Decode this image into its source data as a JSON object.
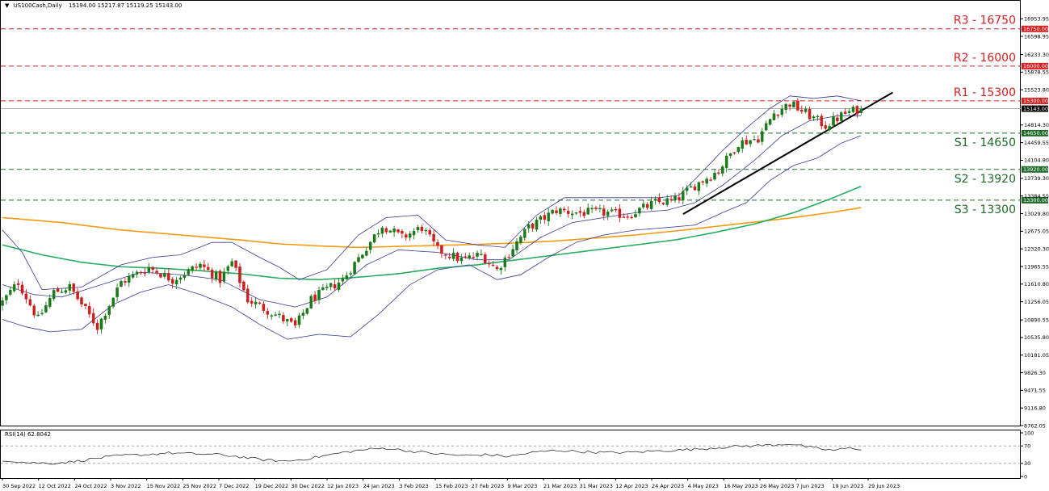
{
  "header": {
    "symbol": "US100Cash,Daily",
    "ohlc": "15194.00 15217.87 15119.25 15143.00"
  },
  "rsi_header": "RSI(14) 62.8042",
  "colors": {
    "up": "#1a7a1a",
    "down": "#cc1f1f",
    "resistance": "#d42020",
    "support": "#1f6b2a",
    "bollinger": "#3b3b9c",
    "ma_green": "#27ae60",
    "ma_orange": "#f39c12",
    "trendline": "#000000",
    "rsi": "#333333"
  },
  "chart_data": {
    "type": "candlestick",
    "ylim": [
      8762.05,
      17250
    ],
    "y_ticks": [
      "16953.95",
      "16598.95",
      "16233.30",
      "15878.55",
      "15523.80",
      "14814.30",
      "14459.55",
      "14104.80",
      "13739.30",
      "13384.55",
      "13029.80",
      "12675.05",
      "12320.30",
      "11965.55",
      "11610.80",
      "11256.05",
      "10890.55",
      "10535.80",
      "10181.05",
      "9826.30",
      "9471.55",
      "9116.80",
      "8762.05"
    ],
    "x_ticks": [
      "30 Sep 2022",
      "12 Oct 2022",
      "24 Oct 2022",
      "3 Nov 2022",
      "15 Nov 2022",
      "25 Nov 2022",
      "7 Dec 2022",
      "19 Dec 2022",
      "30 Dec 2022",
      "12 Jan 2023",
      "24 Jan 2023",
      "3 Feb 2023",
      "15 Feb 2023",
      "27 Feb 2023",
      "9 Mar 2023",
      "21 Mar 2023",
      "31 Mar 2023",
      "12 Apr 2023",
      "24 Apr 2023",
      "4 May 2023",
      "16 May 2023",
      "26 May 2023",
      "7 Jun 2023",
      "19 Jun 2023",
      "29 Jun 2023"
    ],
    "levels": [
      {
        "name": "R3 - 16750",
        "tag": "16750.00",
        "value": 16750,
        "kind": "resistance"
      },
      {
        "name": "R2 - 16000",
        "tag": "16000.00",
        "value": 16000,
        "kind": "resistance"
      },
      {
        "name": "R1 - 15300",
        "tag": "15300.00",
        "value": 15300,
        "kind": "resistance"
      },
      {
        "name": "S1 - 14650",
        "tag": "14650.00",
        "value": 14650,
        "kind": "support"
      },
      {
        "name": "S2 - 13920",
        "tag": "13920.00",
        "value": 13920,
        "kind": "support"
      },
      {
        "name": "S3 - 13300",
        "tag": "13300.00",
        "value": 13300,
        "kind": "support"
      }
    ],
    "current_price": {
      "tag": "15143.00",
      "value": 15143
    },
    "close_anchors": [
      {
        "i": 0,
        "v": 11250
      },
      {
        "i": 4,
        "v": 11650
      },
      {
        "i": 9,
        "v": 10900
      },
      {
        "i": 13,
        "v": 11450
      },
      {
        "i": 17,
        "v": 11550
      },
      {
        "i": 24,
        "v": 10750
      },
      {
        "i": 30,
        "v": 11650
      },
      {
        "i": 37,
        "v": 11950
      },
      {
        "i": 43,
        "v": 11700
      },
      {
        "i": 50,
        "v": 12000
      },
      {
        "i": 55,
        "v": 11700
      },
      {
        "i": 58,
        "v": 12050
      },
      {
        "i": 62,
        "v": 11300
      },
      {
        "i": 70,
        "v": 10950
      },
      {
        "i": 74,
        "v": 10750
      },
      {
        "i": 78,
        "v": 11300
      },
      {
        "i": 86,
        "v": 11700
      },
      {
        "i": 92,
        "v": 12350
      },
      {
        "i": 96,
        "v": 12800
      },
      {
        "i": 101,
        "v": 12550
      },
      {
        "i": 106,
        "v": 12750
      },
      {
        "i": 110,
        "v": 12300
      },
      {
        "i": 116,
        "v": 12100
      },
      {
        "i": 121,
        "v": 12200
      },
      {
        "i": 125,
        "v": 11900
      },
      {
        "i": 129,
        "v": 12350
      },
      {
        "i": 133,
        "v": 12750
      },
      {
        "i": 140,
        "v": 13100
      },
      {
        "i": 145,
        "v": 13050
      },
      {
        "i": 152,
        "v": 13050
      },
      {
        "i": 158,
        "v": 13000
      },
      {
        "i": 165,
        "v": 13250
      },
      {
        "i": 170,
        "v": 13300
      },
      {
        "i": 175,
        "v": 13600
      },
      {
        "i": 181,
        "v": 13900
      },
      {
        "i": 186,
        "v": 14450
      },
      {
        "i": 191,
        "v": 14550
      },
      {
        "i": 195,
        "v": 15050
      },
      {
        "i": 199,
        "v": 15250
      },
      {
        "i": 204,
        "v": 15000
      },
      {
        "i": 208,
        "v": 14800
      },
      {
        "i": 213,
        "v": 15050
      },
      {
        "i": 217,
        "v": 15143
      }
    ],
    "bollinger_upper": [
      [
        0,
        12700
      ],
      [
        5,
        12250
      ],
      [
        10,
        11500
      ],
      [
        20,
        11550
      ],
      [
        30,
        12000
      ],
      [
        38,
        12150
      ],
      [
        45,
        12200
      ],
      [
        53,
        12450
      ],
      [
        58,
        12450
      ],
      [
        65,
        12150
      ],
      [
        70,
        11950
      ],
      [
        75,
        11700
      ],
      [
        82,
        11900
      ],
      [
        90,
        12600
      ],
      [
        97,
        12950
      ],
      [
        105,
        13000
      ],
      [
        112,
        12500
      ],
      [
        120,
        12400
      ],
      [
        127,
        12350
      ],
      [
        135,
        13000
      ],
      [
        142,
        13350
      ],
      [
        150,
        13350
      ],
      [
        158,
        13350
      ],
      [
        166,
        13350
      ],
      [
        171,
        13400
      ],
      [
        176,
        13800
      ],
      [
        182,
        14300
      ],
      [
        188,
        14750
      ],
      [
        194,
        15150
      ],
      [
        199,
        15400
      ],
      [
        205,
        15350
      ],
      [
        211,
        15400
      ],
      [
        217,
        15300
      ]
    ],
    "bollinger_lower": [
      [
        0,
        10900
      ],
      [
        6,
        10750
      ],
      [
        12,
        10650
      ],
      [
        20,
        10700
      ],
      [
        28,
        11200
      ],
      [
        35,
        11450
      ],
      [
        42,
        11600
      ],
      [
        50,
        11400
      ],
      [
        58,
        11150
      ],
      [
        65,
        10800
      ],
      [
        72,
        10500
      ],
      [
        80,
        10600
      ],
      [
        88,
        10550
      ],
      [
        95,
        11000
      ],
      [
        103,
        11600
      ],
      [
        110,
        11900
      ],
      [
        118,
        12000
      ],
      [
        125,
        11700
      ],
      [
        131,
        11800
      ],
      [
        138,
        12150
      ],
      [
        145,
        12450
      ],
      [
        152,
        12600
      ],
      [
        160,
        12700
      ],
      [
        168,
        12750
      ],
      [
        175,
        12800
      ],
      [
        182,
        13050
      ],
      [
        188,
        13250
      ],
      [
        194,
        13700
      ],
      [
        200,
        14000
      ],
      [
        206,
        14150
      ],
      [
        212,
        14450
      ],
      [
        217,
        14600
      ]
    ],
    "bollinger_middle": [
      [
        0,
        11600
      ],
      [
        8,
        11400
      ],
      [
        15,
        11350
      ],
      [
        25,
        11600
      ],
      [
        35,
        11850
      ],
      [
        45,
        11800
      ],
      [
        55,
        11700
      ],
      [
        65,
        11300
      ],
      [
        74,
        11150
      ],
      [
        82,
        11350
      ],
      [
        92,
        12000
      ],
      [
        100,
        12300
      ],
      [
        110,
        12250
      ],
      [
        120,
        12100
      ],
      [
        128,
        12100
      ],
      [
        136,
        12550
      ],
      [
        144,
        12850
      ],
      [
        152,
        12950
      ],
      [
        160,
        13050
      ],
      [
        168,
        13100
      ],
      [
        175,
        13250
      ],
      [
        182,
        13600
      ],
      [
        190,
        14100
      ],
      [
        197,
        14600
      ],
      [
        204,
        14900
      ],
      [
        211,
        15000
      ],
      [
        217,
        15000
      ]
    ],
    "ma_green": [
      [
        0,
        12400
      ],
      [
        10,
        12200
      ],
      [
        20,
        12050
      ],
      [
        30,
        11960
      ],
      [
        40,
        11930
      ],
      [
        50,
        11880
      ],
      [
        60,
        11820
      ],
      [
        70,
        11730
      ],
      [
        80,
        11700
      ],
      [
        90,
        11750
      ],
      [
        100,
        11820
      ],
      [
        110,
        11930
      ],
      [
        120,
        12000
      ],
      [
        130,
        12100
      ],
      [
        140,
        12200
      ],
      [
        150,
        12300
      ],
      [
        160,
        12400
      ],
      [
        170,
        12500
      ],
      [
        180,
        12650
      ],
      [
        190,
        12820
      ],
      [
        200,
        13050
      ],
      [
        210,
        13350
      ],
      [
        217,
        13580
      ]
    ],
    "ma_orange": [
      [
        0,
        12950
      ],
      [
        15,
        12850
      ],
      [
        30,
        12700
      ],
      [
        45,
        12600
      ],
      [
        60,
        12500
      ],
      [
        70,
        12420
      ],
      [
        80,
        12380
      ],
      [
        90,
        12350
      ],
      [
        100,
        12370
      ],
      [
        110,
        12390
      ],
      [
        120,
        12410
      ],
      [
        130,
        12440
      ],
      [
        140,
        12480
      ],
      [
        150,
        12540
      ],
      [
        160,
        12600
      ],
      [
        170,
        12680
      ],
      [
        180,
        12770
      ],
      [
        190,
        12860
      ],
      [
        200,
        12950
      ],
      [
        210,
        13060
      ],
      [
        217,
        13150
      ]
    ],
    "trendline": [
      [
        172,
        13020
      ],
      [
        225,
        15470
      ]
    ],
    "rsi": {
      "name": "RSI(14)",
      "last": 62.8042,
      "levels": [
        70,
        30
      ],
      "ticks": [
        "100",
        "70",
        "30",
        "0"
      ],
      "anchors": [
        [
          0,
          38
        ],
        [
          6,
          32
        ],
        [
          12,
          30
        ],
        [
          18,
          34
        ],
        [
          24,
          42
        ],
        [
          30,
          48
        ],
        [
          36,
          50
        ],
        [
          42,
          54
        ],
        [
          48,
          52
        ],
        [
          55,
          50
        ],
        [
          60,
          45
        ],
        [
          66,
          38
        ],
        [
          72,
          35
        ],
        [
          78,
          42
        ],
        [
          86,
          55
        ],
        [
          92,
          62
        ],
        [
          97,
          65
        ],
        [
          103,
          58
        ],
        [
          110,
          52
        ],
        [
          116,
          48
        ],
        [
          122,
          50
        ],
        [
          128,
          46
        ],
        [
          134,
          55
        ],
        [
          140,
          60
        ],
        [
          146,
          57
        ],
        [
          152,
          55
        ],
        [
          158,
          55
        ],
        [
          164,
          58
        ],
        [
          170,
          60
        ],
        [
          176,
          63
        ],
        [
          182,
          67
        ],
        [
          188,
          70
        ],
        [
          194,
          72
        ],
        [
          199,
          75
        ],
        [
          205,
          65
        ],
        [
          210,
          60
        ],
        [
          214,
          65
        ],
        [
          217,
          62.8
        ]
      ]
    }
  }
}
